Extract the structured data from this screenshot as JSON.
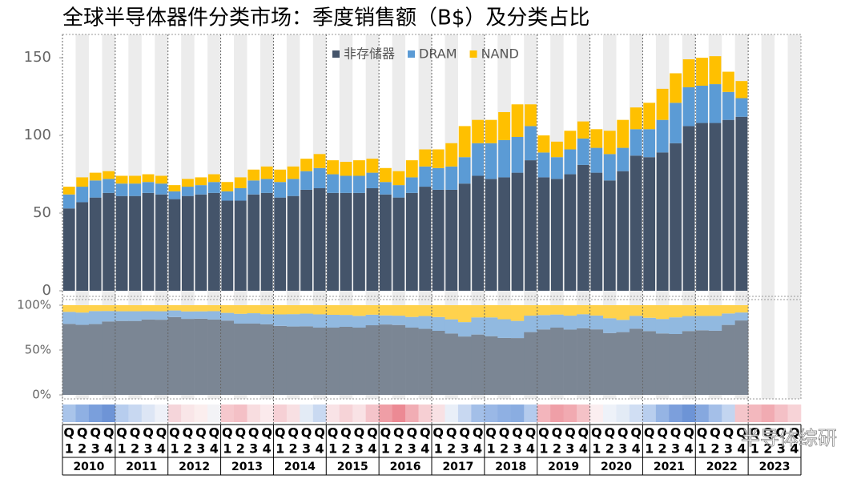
{
  "chart_data": {
    "type": "bar",
    "title": "全球半导体器件分类市场：季度销售额（B$）及分类占比",
    "watermark": "半导体综研",
    "years": [
      "2010",
      "2011",
      "2012",
      "2013",
      "2014",
      "2015",
      "2016",
      "2017",
      "2018",
      "2019",
      "2020",
      "2021",
      "2022",
      "2023"
    ],
    "quarter_prefix": "Q",
    "quarters": [
      "1",
      "2",
      "3",
      "4"
    ],
    "series": [
      {
        "name": "非存储器",
        "color": "#44546a",
        "share_color": "#7b8694",
        "values": [
          53,
          57,
          60,
          63,
          61,
          61,
          63,
          62,
          59,
          61,
          62,
          63,
          58,
          58,
          62,
          63,
          60,
          61,
          65,
          66,
          63,
          63,
          63,
          66,
          62,
          60,
          63,
          67,
          65,
          65,
          69,
          74,
          72,
          73,
          76,
          84,
          73,
          72,
          75,
          81,
          76,
          71,
          77,
          87,
          86,
          89,
          95,
          106,
          108,
          108,
          110,
          112,
          null,
          null,
          null,
          null
        ]
      },
      {
        "name": "DRAM",
        "color": "#5b9bd5",
        "share_color": "#91b9e0",
        "values": [
          9,
          10,
          11,
          9,
          8,
          8,
          7,
          7,
          5,
          6,
          6,
          7,
          6,
          8,
          9,
          9,
          10,
          11,
          12,
          13,
          12,
          11,
          11,
          10,
          8,
          8,
          10,
          13,
          14,
          15,
          17,
          21,
          23,
          24,
          23,
          22,
          16,
          14,
          16,
          17,
          16,
          17,
          15,
          17,
          18,
          21,
          26,
          25,
          24,
          25,
          18,
          12,
          null,
          null,
          null,
          null
        ]
      },
      {
        "name": "NAND",
        "color": "#ffc000",
        "share_color": "#ffd24d",
        "values": [
          5,
          6,
          5,
          5,
          5,
          5,
          5,
          5,
          4,
          5,
          5,
          5,
          6,
          7,
          7,
          8,
          8,
          8,
          8,
          9,
          9,
          9,
          10,
          9,
          9,
          9,
          11,
          11,
          12,
          15,
          20,
          15,
          15,
          18,
          21,
          14,
          11,
          10,
          12,
          11,
          12,
          15,
          18,
          14,
          17,
          20,
          19,
          18,
          18,
          18,
          13,
          11,
          null,
          null,
          null,
          null
        ]
      }
    ],
    "ylim": [
      0,
      165
    ],
    "yticks": [
      0,
      50,
      100,
      150
    ],
    "share_ylim": [
      0,
      100
    ],
    "share_yticks": [
      {
        "value": 0,
        "label": "0%"
      },
      {
        "value": 50,
        "label": "50%"
      },
      {
        "value": 100,
        "label": "100%"
      }
    ],
    "strip_colors": [
      "#a9c4ea",
      "#8fb0e3",
      "#7a9fdc",
      "#6e94d6",
      "#b7cdee",
      "#c8d8f1",
      "#dde6f5",
      "#eef1f8",
      "#f5d5da",
      "#f9e6e8",
      "#fbeeee",
      "#f3f3f6",
      "#f6c8cd",
      "#f4c0c6",
      "#f8dde0",
      "#fbeaec",
      "#f6d0d5",
      "#f8e0e3",
      "#e3ebf6",
      "#c9d9f1",
      "#f9e3e6",
      "#f6d3d7",
      "#f9e2e5",
      "#f4c4ca",
      "#ef9ea6",
      "#ec8a94",
      "#f1adb4",
      "#f6cfd3",
      "#f8e1e4",
      "#e9eff8",
      "#c8d8f1",
      "#a3bfe8",
      "#9ab8e6",
      "#8fb0e3",
      "#8aade1",
      "#b4cbed",
      "#f3b5bc",
      "#ef9fa7",
      "#f1aab1",
      "#f4c2c7",
      "#fbeef0",
      "#eef2f9",
      "#e3ebf6",
      "#d0def3",
      "#b8ceee",
      "#95b4e4",
      "#7c9fdc",
      "#6d94d6",
      "#86a8df",
      "#a4bfe8",
      "#c3d5f0",
      "#f4c5ca",
      "#f3b8be",
      "#f1abb2",
      "#f4c0c6",
      "#f7d3d7"
    ],
    "legend": "top-center"
  }
}
